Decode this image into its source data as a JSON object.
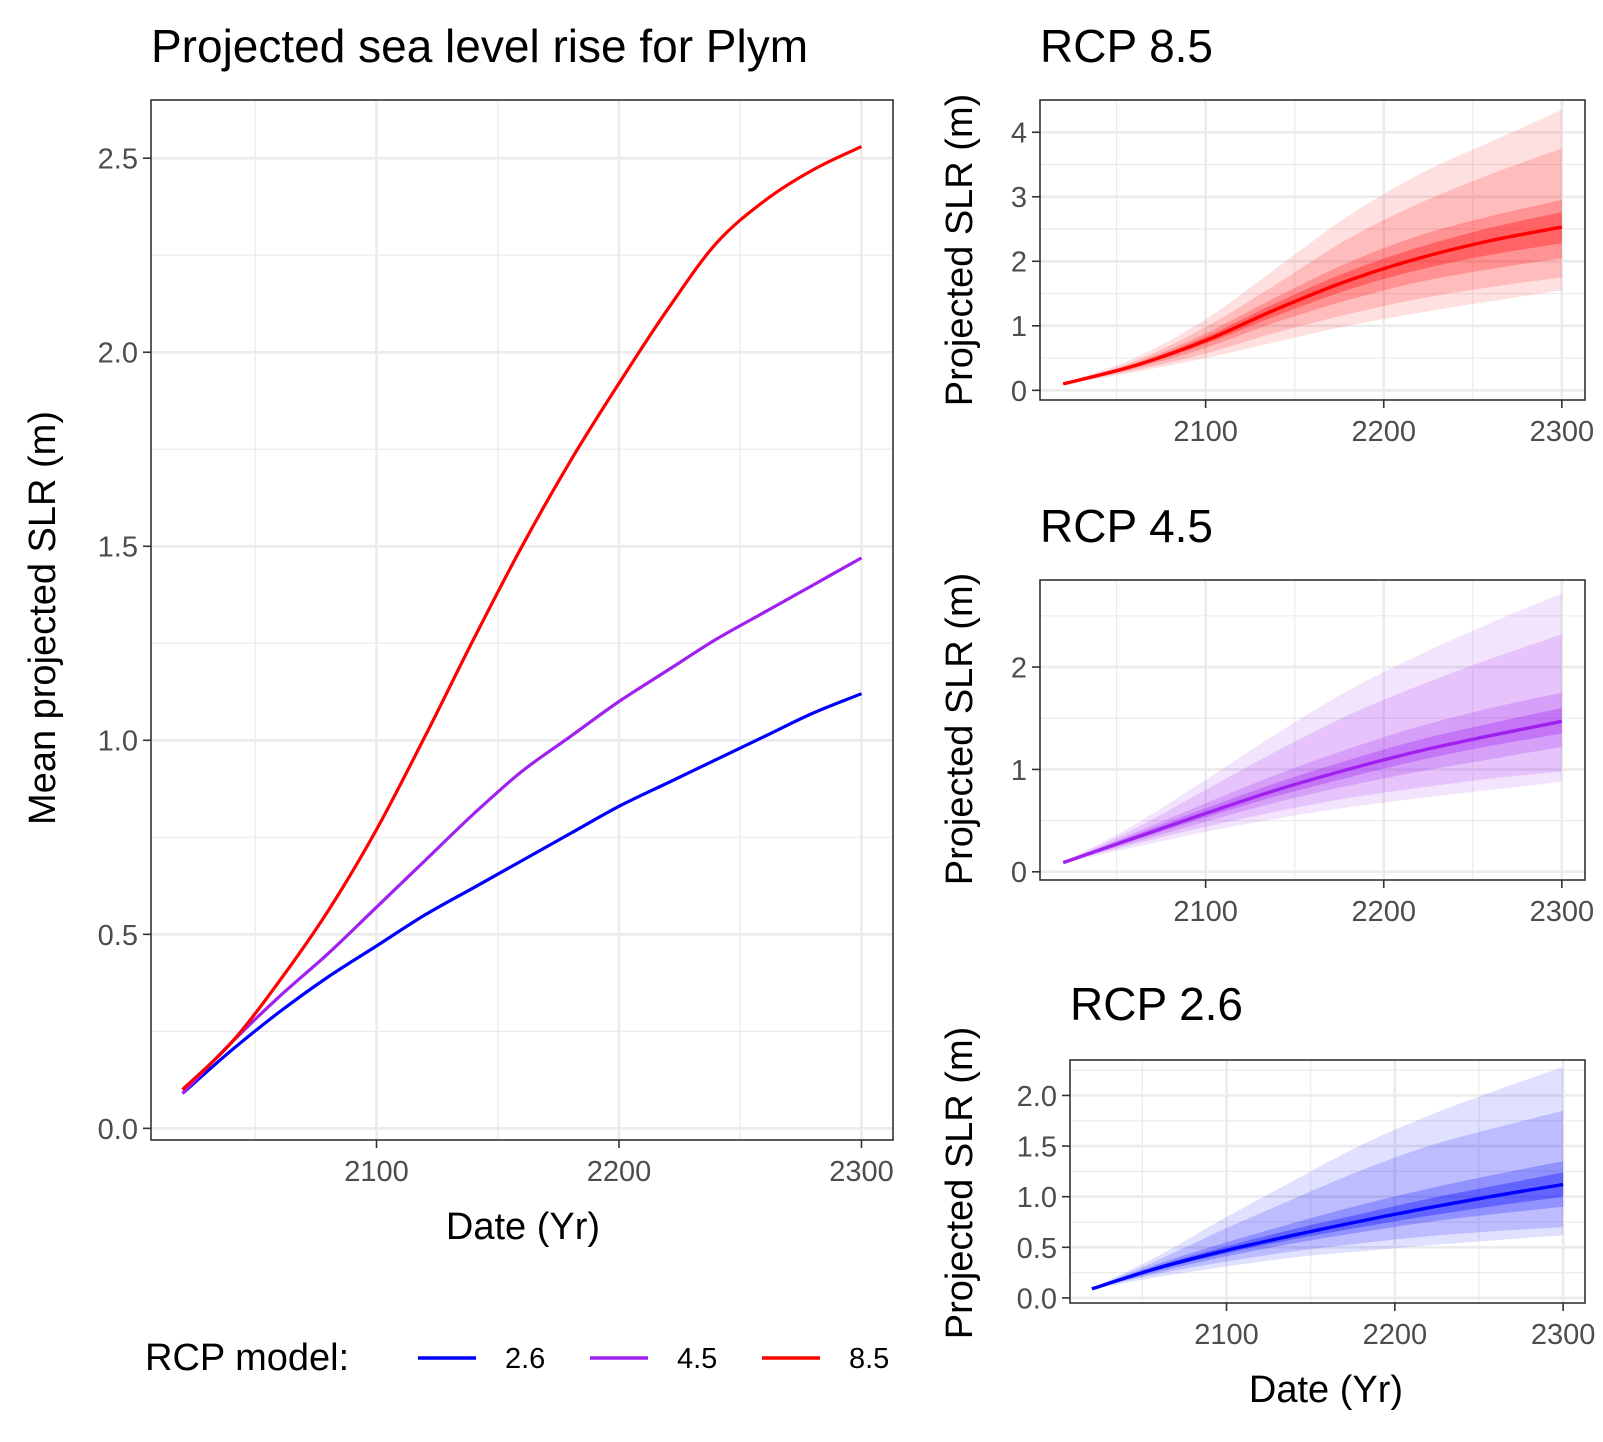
{
  "chart_data": [
    {
      "type": "line",
      "title": "Projected sea level rise for Plym",
      "xlabel": "Date (Yr)",
      "ylabel": "Mean projected SLR (m)",
      "xlim": [
        2007,
        2313
      ],
      "ylim": [
        -0.03,
        2.65
      ],
      "xticks": [
        2100,
        2200,
        2300
      ],
      "yticks": [
        0.0,
        0.5,
        1.0,
        1.5,
        2.0,
        2.5
      ],
      "ytick_labels": [
        "0.0",
        "0.5",
        "1.0",
        "1.5",
        "2.0",
        "2.5"
      ],
      "grid": true,
      "legend": {
        "title": "RCP model:",
        "placement": "bottom",
        "entries": [
          {
            "label": "2.6",
            "color": "#0000ff"
          },
          {
            "label": "4.5",
            "color": "#a020f0"
          },
          {
            "label": "8.5",
            "color": "#ff0000"
          }
        ]
      },
      "x": [
        2020,
        2040,
        2060,
        2080,
        2100,
        2120,
        2140,
        2160,
        2180,
        2200,
        2220,
        2240,
        2260,
        2280,
        2300
      ],
      "series": [
        {
          "name": "2.6",
          "color": "#0000ff",
          "values": [
            0.09,
            0.2,
            0.3,
            0.39,
            0.47,
            0.55,
            0.62,
            0.69,
            0.76,
            0.83,
            0.89,
            0.95,
            1.01,
            1.07,
            1.12
          ]
        },
        {
          "name": "4.5",
          "color": "#a020f0",
          "values": [
            0.09,
            0.22,
            0.34,
            0.45,
            0.57,
            0.69,
            0.81,
            0.92,
            1.01,
            1.1,
            1.18,
            1.26,
            1.33,
            1.4,
            1.47
          ]
        },
        {
          "name": "8.5",
          "color": "#ff0000",
          "values": [
            0.1,
            0.22,
            0.38,
            0.56,
            0.77,
            1.01,
            1.26,
            1.5,
            1.72,
            1.92,
            2.11,
            2.28,
            2.39,
            2.47,
            2.53
          ]
        }
      ]
    },
    {
      "type": "area",
      "title": "RCP 8.5",
      "xlabel": "",
      "ylabel": "Projected SLR (m)",
      "xlim": [
        2007,
        2313
      ],
      "ylim": [
        -0.15,
        4.5
      ],
      "xticks": [
        2100,
        2200,
        2300
      ],
      "yticks": [
        0,
        1,
        2,
        3,
        4
      ],
      "ytick_labels": [
        "0",
        "1",
        "2",
        "3",
        "4"
      ],
      "grid": true,
      "color": "#ff0000",
      "x": [
        2020,
        2060,
        2100,
        2140,
        2180,
        2220,
        2260,
        2300
      ],
      "mean": [
        0.1,
        0.38,
        0.77,
        1.26,
        1.7,
        2.05,
        2.32,
        2.53
      ],
      "bands": [
        {
          "lower": [
            0.09,
            0.28,
            0.5,
            0.75,
            1.0,
            1.2,
            1.38,
            1.55
          ],
          "upper": [
            0.11,
            0.5,
            1.1,
            1.9,
            2.7,
            3.35,
            3.85,
            4.35
          ]
        },
        {
          "lower": [
            0.09,
            0.31,
            0.57,
            0.9,
            1.18,
            1.42,
            1.6,
            1.75
          ],
          "upper": [
            0.11,
            0.45,
            0.98,
            1.65,
            2.35,
            2.9,
            3.35,
            3.75
          ]
        },
        {
          "lower": [
            0.095,
            0.34,
            0.66,
            1.06,
            1.4,
            1.68,
            1.88,
            2.05
          ],
          "upper": [
            0.105,
            0.42,
            0.88,
            1.45,
            1.98,
            2.4,
            2.7,
            2.95
          ]
        },
        {
          "lower": [
            0.097,
            0.36,
            0.72,
            1.16,
            1.56,
            1.87,
            2.1,
            2.28
          ],
          "upper": [
            0.103,
            0.4,
            0.83,
            1.36,
            1.84,
            2.22,
            2.52,
            2.76
          ]
        }
      ]
    },
    {
      "type": "area",
      "title": "RCP 4.5",
      "xlabel": "",
      "ylabel": "Projected SLR (m)",
      "xlim": [
        2007,
        2313
      ],
      "ylim": [
        -0.08,
        2.85
      ],
      "xticks": [
        2100,
        2200,
        2300
      ],
      "yticks": [
        0,
        1,
        2
      ],
      "ytick_labels": [
        "0",
        "1",
        "2"
      ],
      "grid": true,
      "color": "#a020f0",
      "x": [
        2020,
        2060,
        2100,
        2140,
        2180,
        2220,
        2260,
        2300
      ],
      "mean": [
        0.09,
        0.33,
        0.57,
        0.8,
        1.0,
        1.18,
        1.33,
        1.47
      ],
      "bands": [
        {
          "lower": [
            0.085,
            0.24,
            0.39,
            0.52,
            0.63,
            0.72,
            0.8,
            0.88
          ],
          "upper": [
            0.095,
            0.46,
            0.9,
            1.35,
            1.77,
            2.12,
            2.43,
            2.72
          ]
        },
        {
          "lower": [
            0.087,
            0.27,
            0.44,
            0.59,
            0.72,
            0.82,
            0.91,
            0.98
          ],
          "upper": [
            0.093,
            0.42,
            0.8,
            1.18,
            1.53,
            1.82,
            2.08,
            2.32
          ]
        },
        {
          "lower": [
            0.088,
            0.29,
            0.49,
            0.68,
            0.84,
            0.98,
            1.1,
            1.22
          ],
          "upper": [
            0.092,
            0.38,
            0.67,
            0.95,
            1.2,
            1.42,
            1.6,
            1.75
          ]
        },
        {
          "lower": [
            0.089,
            0.31,
            0.53,
            0.74,
            0.92,
            1.09,
            1.23,
            1.35
          ],
          "upper": [
            0.091,
            0.36,
            0.62,
            0.87,
            1.09,
            1.29,
            1.45,
            1.6
          ]
        }
      ]
    },
    {
      "type": "area",
      "title": "RCP 2.6",
      "xlabel": "Date (Yr)",
      "ylabel": "Projected SLR (m)",
      "xlim": [
        2007,
        2313
      ],
      "ylim": [
        -0.05,
        2.35
      ],
      "xticks": [
        2100,
        2200,
        2300
      ],
      "yticks": [
        0.0,
        0.5,
        1.0,
        1.5,
        2.0
      ],
      "ytick_labels": [
        "0.0",
        "0.5",
        "1.0",
        "1.5",
        "2.0"
      ],
      "grid": true,
      "color": "#0000ff",
      "x": [
        2020,
        2060,
        2100,
        2140,
        2180,
        2220,
        2260,
        2300
      ],
      "mean": [
        0.09,
        0.3,
        0.47,
        0.62,
        0.76,
        0.89,
        1.01,
        1.12
      ],
      "bands": [
        {
          "lower": [
            0.085,
            0.21,
            0.31,
            0.4,
            0.46,
            0.52,
            0.57,
            0.62
          ],
          "upper": [
            0.095,
            0.42,
            0.8,
            1.16,
            1.51,
            1.8,
            2.05,
            2.28
          ]
        },
        {
          "lower": [
            0.087,
            0.24,
            0.36,
            0.46,
            0.54,
            0.61,
            0.66,
            0.7
          ],
          "upper": [
            0.093,
            0.38,
            0.69,
            0.98,
            1.26,
            1.5,
            1.68,
            1.85
          ]
        },
        {
          "lower": [
            0.088,
            0.26,
            0.41,
            0.54,
            0.65,
            0.75,
            0.83,
            0.9
          ],
          "upper": [
            0.092,
            0.34,
            0.55,
            0.74,
            0.92,
            1.08,
            1.22,
            1.35
          ]
        },
        {
          "lower": [
            0.089,
            0.28,
            0.44,
            0.58,
            0.7,
            0.81,
            0.91,
            1.0
          ],
          "upper": [
            0.091,
            0.32,
            0.51,
            0.68,
            0.83,
            0.98,
            1.11,
            1.24
          ]
        }
      ]
    }
  ]
}
